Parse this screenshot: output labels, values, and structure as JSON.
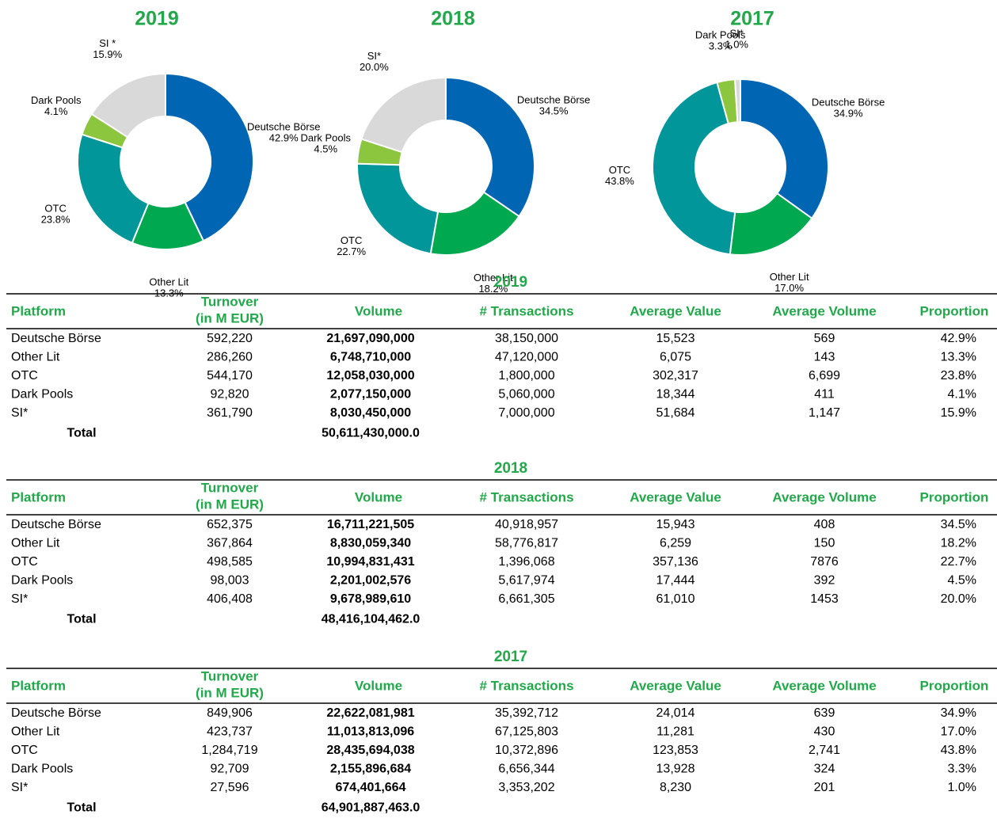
{
  "chart_data": [
    {
      "type": "pie",
      "title": "2019",
      "categories": [
        "Deutsche Börse",
        "Other Lit",
        "OTC",
        "Dark Pools",
        "SI *"
      ],
      "values": [
        42.9,
        13.3,
        23.8,
        4.1,
        15.9
      ],
      "value_labels": [
        "42.9%",
        "13.3%",
        "23.8%",
        "4.1%",
        "15.9%"
      ],
      "colors": [
        "#0066b3",
        "#00a94f",
        "#00969a",
        "#8cc63f",
        "#d9d9d9"
      ]
    },
    {
      "type": "pie",
      "title": "2018",
      "categories": [
        "Deutsche Börse",
        "Other Lit",
        "OTC",
        "Dark Pools",
        "SI*"
      ],
      "values": [
        34.5,
        18.2,
        22.7,
        4.5,
        20.0
      ],
      "value_labels": [
        "34.5%",
        "18.2%",
        "22.7%",
        "4.5%",
        "20.0%"
      ],
      "colors": [
        "#0066b3",
        "#00a94f",
        "#00969a",
        "#8cc63f",
        "#d9d9d9"
      ]
    },
    {
      "type": "pie",
      "title": "2017",
      "categories": [
        "Deutsche Börse",
        "Other Lit",
        "OTC",
        "Dark Pools",
        "SI*"
      ],
      "values": [
        34.9,
        17.0,
        43.8,
        3.3,
        1.0
      ],
      "value_labels": [
        "34.9%",
        "17.0%",
        "43.8%",
        "3.3%",
        "1.0%"
      ],
      "colors": [
        "#0066b3",
        "#00a94f",
        "#00969a",
        "#8cc63f",
        "#d9d9d9"
      ]
    }
  ],
  "tables": [
    {
      "title": "2019",
      "header": [
        "Platform",
        "Turnover",
        "(in M EUR)",
        "Volume",
        "# Transactions",
        "Average Value",
        "Average Volume",
        "Proportion"
      ],
      "rows": [
        [
          "Deutsche Börse",
          "592,220",
          "21,697,090,000",
          "38,150,000",
          "15,523",
          "569",
          "42.9%"
        ],
        [
          "Other Lit",
          "286,260",
          "6,748,710,000",
          "47,120,000",
          "6,075",
          "143",
          "13.3%"
        ],
        [
          "OTC",
          "544,170",
          "12,058,030,000",
          "1,800,000",
          "302,317",
          "6,699",
          "23.8%"
        ],
        [
          "Dark Pools",
          "92,820",
          "2,077,150,000",
          "5,060,000",
          "18,344",
          "411",
          "4.1%"
        ],
        [
          "SI*",
          "361,790",
          "8,030,450,000",
          "7,000,000",
          "51,684",
          "1,147",
          "15.9%"
        ]
      ],
      "total": [
        "Total",
        "50,611,430,000.0"
      ]
    },
    {
      "title": "2018",
      "header": [
        "Platform",
        "Turnover",
        "(in M EUR)",
        "Volume",
        "# Transactions",
        "Average Value",
        "Average Volume",
        "Proportion"
      ],
      "rows": [
        [
          "Deutsche Börse",
          "652,375",
          "16,711,221,505",
          "40,918,957",
          "15,943",
          "408",
          "34.5%"
        ],
        [
          "Other Lit",
          "367,864",
          "8,830,059,340",
          "58,776,817",
          "6,259",
          "150",
          "18.2%"
        ],
        [
          "OTC",
          "498,585",
          "10,994,831,431",
          "1,396,068",
          "357,136",
          "7876",
          "22.7%"
        ],
        [
          "Dark Pools",
          "98,003",
          "2,201,002,576",
          "5,617,974",
          "17,444",
          "392",
          "4.5%"
        ],
        [
          "SI*",
          "406,408",
          "9,678,989,610",
          "6,661,305",
          "61,010",
          "1453",
          "20.0%"
        ]
      ],
      "total": [
        "Total",
        "48,416,104,462.0"
      ]
    },
    {
      "title": "2017",
      "header": [
        "Platform",
        "Turnover",
        "(in M EUR)",
        "Volume",
        "# Transactions",
        "Average Value",
        "Average Volume",
        "Proportion"
      ],
      "rows": [
        [
          "Deutsche Börse",
          "849,906",
          "22,622,081,981",
          "35,392,712",
          "24,014",
          "639",
          "34.9%"
        ],
        [
          "Other Lit",
          "423,737",
          "11,013,813,096",
          "67,125,803",
          "11,281",
          "430",
          "17.0%"
        ],
        [
          "OTC",
          "1,284,719",
          "28,435,694,038",
          "10,372,896",
          "123,853",
          "2,741",
          "43.8%"
        ],
        [
          "Dark Pools",
          "92,709",
          "2,155,896,684",
          "6,656,344",
          "13,928",
          "324",
          "3.3%"
        ],
        [
          "SI*",
          "27,596",
          "674,401,664",
          "3,353,202",
          "8,230",
          "201",
          "1.0%"
        ]
      ],
      "total": [
        "Total",
        "64,901,887,463.0"
      ]
    }
  ]
}
